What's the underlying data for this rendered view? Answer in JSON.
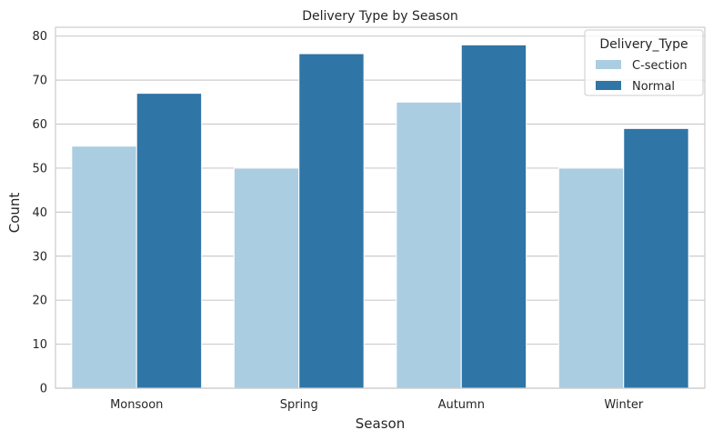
{
  "chart_data": {
    "type": "bar",
    "title": "Delivery Type by Season",
    "xlabel": "Season",
    "ylabel": "Count",
    "categories": [
      "Monsoon",
      "Spring",
      "Autumn",
      "Winter"
    ],
    "series": [
      {
        "name": "C-section",
        "values": [
          55,
          50,
          65,
          50
        ],
        "color": "#abcde1"
      },
      {
        "name": "Normal",
        "values": [
          67,
          76,
          78,
          59
        ],
        "color": "#2f75a6"
      }
    ],
    "ylim": [
      0,
      82
    ],
    "yticks": [
      0,
      10,
      20,
      30,
      40,
      50,
      60,
      70,
      80
    ],
    "grid": true,
    "legend": {
      "title": "Delivery_Type",
      "placement": "top-right"
    }
  }
}
